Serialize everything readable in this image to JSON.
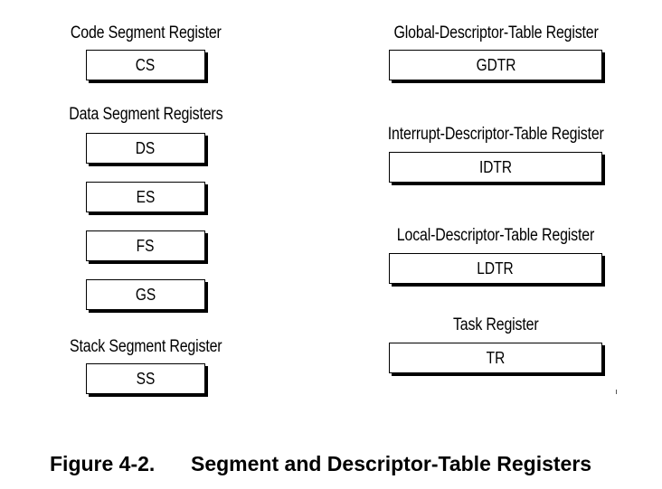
{
  "left_column": {
    "code": {
      "title": "Code Segment Register",
      "registers": [
        "CS"
      ]
    },
    "data": {
      "title": "Data Segment Registers",
      "registers": [
        "DS",
        "ES",
        "FS",
        "GS"
      ]
    },
    "stack": {
      "title": "Stack Segment Register",
      "registers": [
        "SS"
      ]
    }
  },
  "right_column": {
    "gdtr": {
      "title": "Global-Descriptor-Table Register",
      "register": "GDTR"
    },
    "idtr": {
      "title": "Interrupt-Descriptor-Table Register",
      "register": "IDTR"
    },
    "ldtr": {
      "title": "Local-Descriptor-Table Register",
      "register": "LDTR"
    },
    "tr": {
      "title": "Task Register",
      "register": "TR"
    }
  },
  "caption": {
    "number": "Figure 4-2.",
    "text": "Segment and Descriptor-Table Registers"
  }
}
